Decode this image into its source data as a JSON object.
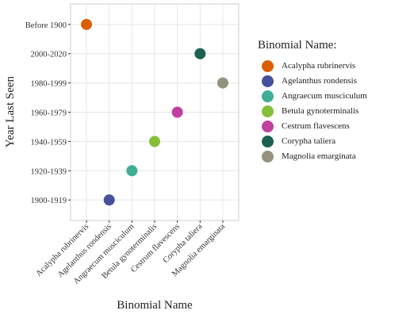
{
  "chart_data": {
    "type": "scatter",
    "title": "",
    "xlabel": "Binomial Name",
    "ylabel": "Year Last Seen",
    "categories": [
      "Acalypha rubrinervis",
      "Agelanthus rondensis",
      "Angraecum musciculum",
      "Betula gynoterminalis",
      "Cestrum flavescens",
      "Corypha taliera",
      "Magnolia emarginata"
    ],
    "y_categories": [
      "1900-1919",
      "1920-1939",
      "1940-1959",
      "1960-1979",
      "1980-1999",
      "2000-2020",
      "Before 1900"
    ],
    "points": [
      {
        "x": "Acalypha rubrinervis",
        "y": "Before 1900",
        "color": "#D95F02"
      },
      {
        "x": "Agelanthus rondensis",
        "y": "1900-1919",
        "color": "#46509B"
      },
      {
        "x": "Angraecum musciculum",
        "y": "1920-1939",
        "color": "#3EAF95"
      },
      {
        "x": "Betula gynoterminalis",
        "y": "1940-1959",
        "color": "#84BF3A"
      },
      {
        "x": "Cestrum flavescens",
        "y": "1960-1979",
        "color": "#C040A0"
      },
      {
        "x": "Corypha taliera",
        "y": "2000-2020",
        "color": "#1B6150"
      },
      {
        "x": "Magnolia emarginata",
        "y": "1980-1999",
        "color": "#93937F"
      }
    ],
    "grid": true,
    "legend": {
      "title": "Binomial Name:",
      "position": "right"
    }
  }
}
